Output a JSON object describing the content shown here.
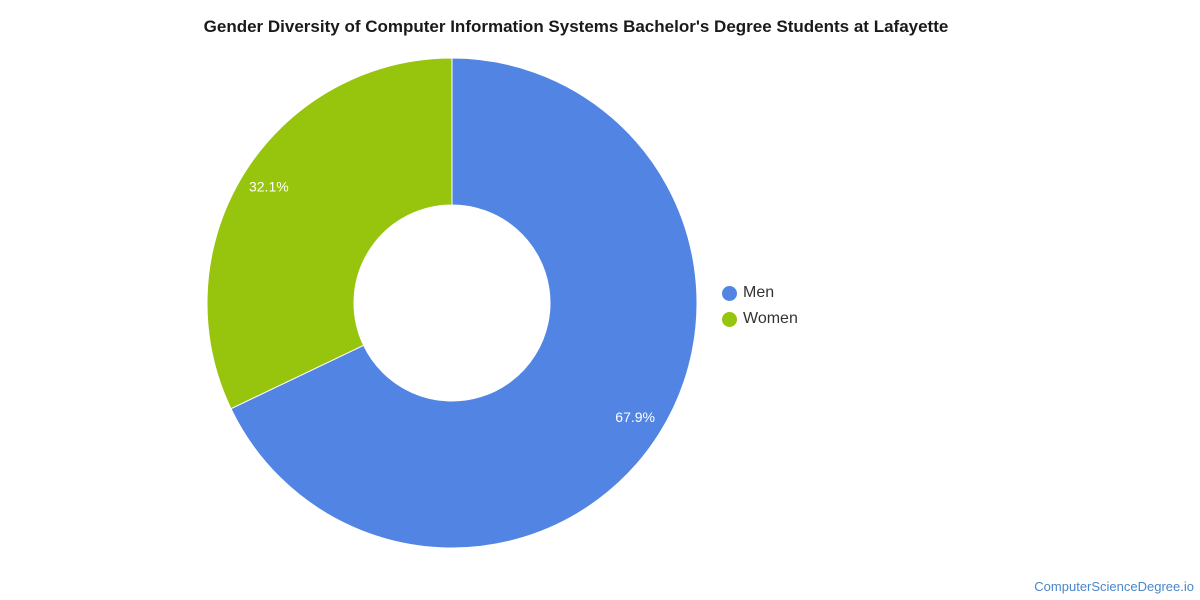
{
  "chart_data": {
    "type": "pie",
    "title": "Gender Diversity of Computer Information Systems Bachelor's Degree Students at Lafayette",
    "donut": true,
    "categories": [
      "Men",
      "Women"
    ],
    "values": [
      67.9,
      32.1
    ],
    "data_labels": [
      "67.9%",
      "32.1%"
    ],
    "colors": [
      "#5285e3",
      "#97c40c"
    ],
    "legend_position": "right"
  },
  "legend": {
    "items": [
      {
        "label": "Men",
        "color": "#5285e3"
      },
      {
        "label": "Women",
        "color": "#97c40c"
      }
    ]
  },
  "footer": {
    "watermark": "ComputerScienceDegree.io"
  }
}
